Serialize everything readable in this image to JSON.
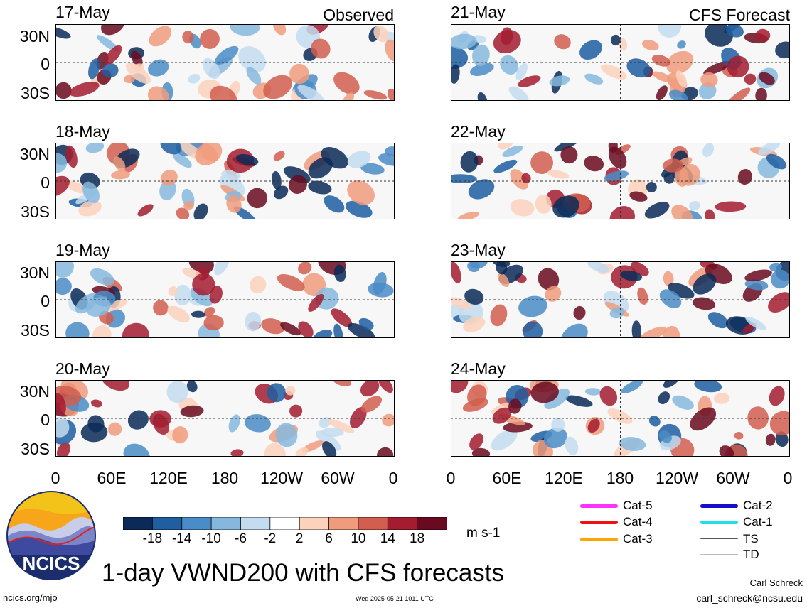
{
  "observed_label": "Observed",
  "forecast_label": "CFS Forecast",
  "panels": [
    {
      "date": "17-May"
    },
    {
      "date": "18-May"
    },
    {
      "date": "19-May"
    },
    {
      "date": "20-May"
    },
    {
      "date": "21-May"
    },
    {
      "date": "22-May"
    },
    {
      "date": "23-May"
    },
    {
      "date": "24-May"
    }
  ],
  "lat_ticks": [
    "30N",
    "0",
    "30S"
  ],
  "lon_ticks": [
    "0",
    "60E",
    "120E",
    "180",
    "120W",
    "60W",
    "0"
  ],
  "colorbar": {
    "tick_labels": [
      "-18",
      "-14",
      "-10",
      "-6",
      "-2",
      "2",
      "6",
      "10",
      "14",
      "18"
    ],
    "colors": [
      "#0b2a57",
      "#1f5ea1",
      "#4a8cc7",
      "#86b8de",
      "#c3dcef",
      "#ffffff",
      "#fcd2bd",
      "#f09c7c",
      "#d15e4f",
      "#a31c30",
      "#6a0a20"
    ],
    "units": "m s-1"
  },
  "storm_legend": [
    {
      "label": "Cat-5",
      "color": "#ff33ff"
    },
    {
      "label": "Cat-4",
      "color": "#ee1111"
    },
    {
      "label": "Cat-3",
      "color": "#ffa500"
    },
    {
      "label": "Cat-2",
      "color": "#1111cc"
    },
    {
      "label": "Cat-1",
      "color": "#22ddee"
    },
    {
      "label": "TS",
      "color": "#555555"
    },
    {
      "label": "TD",
      "color": "#bbbbbb"
    }
  ],
  "logo_text": "NCICS",
  "main_title": "1-day VWND200 with CFS forecasts",
  "footer": {
    "url": "ncics.org/mjo",
    "timestamp": "Wed 2025-05-21 1011 UTC",
    "author": "Carl Schreck",
    "email": "carl_schreck@ncsu.edu"
  },
  "chart_data": {
    "type": "heatmap",
    "variable": "VWND200",
    "units": "m s-1",
    "x_range": [
      "0",
      "0"
    ],
    "y_range": [
      "30S",
      "30N"
    ],
    "color_levels": [
      -18,
      -14,
      -10,
      -6,
      -2,
      2,
      6,
      10,
      14,
      18
    ],
    "panels": [
      "17-May",
      "18-May",
      "19-May",
      "20-May",
      "21-May",
      "22-May",
      "23-May",
      "24-May"
    ]
  }
}
